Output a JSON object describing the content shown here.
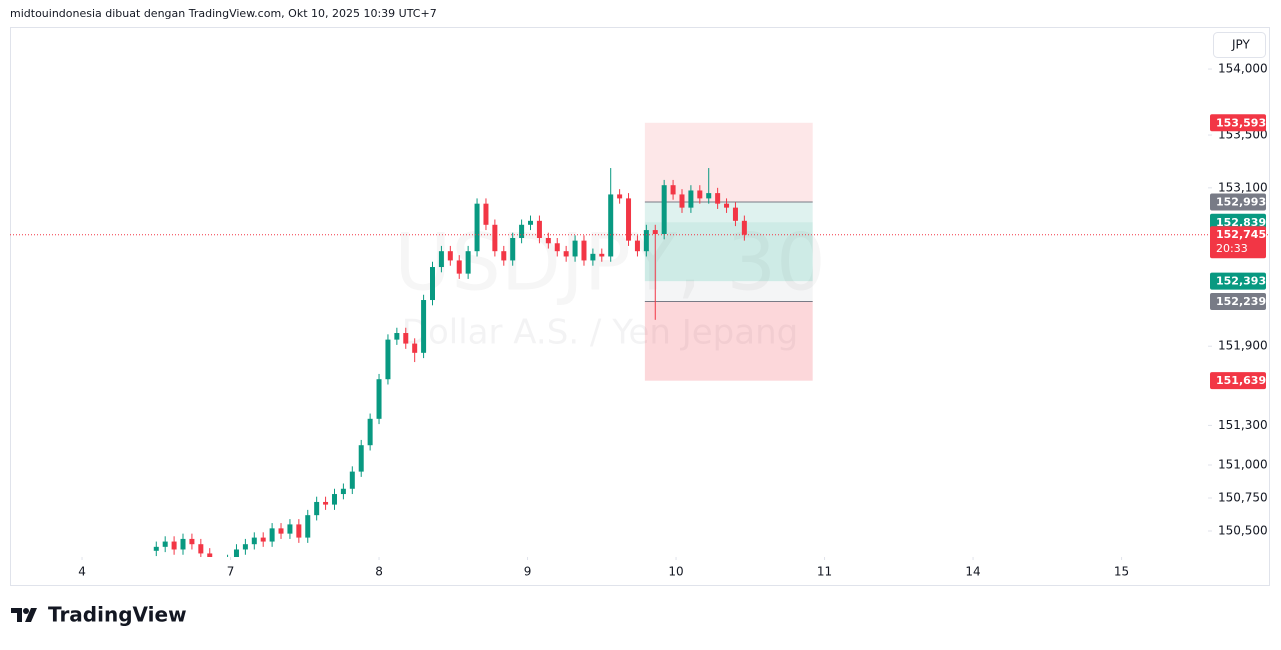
{
  "chart_data": {
    "type": "candlestick",
    "title": "midtouindonesia dibuat dengan TradingView.com, Okt 10, 2025 10:39 UTC+7",
    "symbol": "USDJPY, 30",
    "description": "Dollar A.S. / Yen Jepang",
    "currency": "JPY",
    "brand": "TradingView",
    "up_color": "#089981",
    "down_color": "#f23645",
    "xlim": [
      -0.485,
      7.582
    ],
    "xticks": [
      {
        "value": 0,
        "label": "4"
      },
      {
        "value": 1,
        "label": "7"
      },
      {
        "value": 2,
        "label": "8"
      },
      {
        "value": 3,
        "label": "9"
      },
      {
        "value": 4,
        "label": "10"
      },
      {
        "value": 5,
        "label": "11"
      },
      {
        "value": 6,
        "label": "14"
      },
      {
        "value": 7,
        "label": "15"
      }
    ],
    "ylim": [
      150.303,
      154.311
    ],
    "yticks": [
      {
        "value": 154.0,
        "label": "154,000"
      },
      {
        "value": 153.5,
        "label": "153,500"
      },
      {
        "value": 153.1,
        "label": "153,100"
      },
      {
        "value": 151.9,
        "label": "151,900"
      },
      {
        "value": 151.3,
        "label": "151,300"
      },
      {
        "value": 151.0,
        "label": "151,000"
      },
      {
        "value": 150.75,
        "label": "150,750"
      },
      {
        "value": 150.5,
        "label": "150,500"
      }
    ],
    "x": [
      0.5,
      0.56,
      0.62,
      0.68,
      0.74,
      0.8,
      0.86,
      0.92,
      0.98,
      1.04,
      1.1,
      1.16,
      1.22,
      1.28,
      1.34,
      1.4,
      1.46,
      1.52,
      1.58,
      1.64,
      1.7,
      1.76,
      1.82,
      1.88,
      1.94,
      2.0,
      2.06,
      2.12,
      2.18,
      2.24,
      2.3,
      2.36,
      2.42,
      2.48,
      2.54,
      2.6,
      2.66,
      2.72,
      2.78,
      2.84,
      2.9,
      2.96,
      3.02,
      3.08,
      3.14,
      3.2,
      3.26,
      3.32,
      3.38,
      3.44,
      3.5,
      3.56,
      3.62,
      3.68,
      3.74,
      3.8,
      3.86,
      3.92,
      3.98,
      4.04,
      4.1,
      4.16,
      4.22,
      4.28,
      4.34,
      4.4,
      4.46
    ],
    "ohlc": [
      [
        150.35,
        150.42,
        150.31,
        150.38
      ],
      [
        150.38,
        150.46,
        150.34,
        150.42
      ],
      [
        150.42,
        150.46,
        150.32,
        150.36
      ],
      [
        150.36,
        150.48,
        150.32,
        150.44
      ],
      [
        150.44,
        150.48,
        150.36,
        150.4
      ],
      [
        150.4,
        150.44,
        150.29,
        150.33
      ],
      [
        150.33,
        150.37,
        150.21,
        150.25
      ],
      [
        150.25,
        150.29,
        150.18,
        150.22
      ],
      [
        150.22,
        150.32,
        150.18,
        150.28
      ],
      [
        150.28,
        150.4,
        150.24,
        150.36
      ],
      [
        150.36,
        150.44,
        150.32,
        150.4
      ],
      [
        150.4,
        150.49,
        150.36,
        150.45
      ],
      [
        150.45,
        150.49,
        150.38,
        150.42
      ],
      [
        150.42,
        150.56,
        150.38,
        150.52
      ],
      [
        150.52,
        150.56,
        150.44,
        150.48
      ],
      [
        150.48,
        150.59,
        150.44,
        150.55
      ],
      [
        150.55,
        150.59,
        150.41,
        150.45
      ],
      [
        150.45,
        150.66,
        150.41,
        150.62
      ],
      [
        150.62,
        150.76,
        150.58,
        150.72
      ],
      [
        150.72,
        150.76,
        150.66,
        150.7
      ],
      [
        150.7,
        150.82,
        150.66,
        150.78
      ],
      [
        150.78,
        150.86,
        150.74,
        150.82
      ],
      [
        150.82,
        150.99,
        150.78,
        150.95
      ],
      [
        150.95,
        151.19,
        150.91,
        151.15
      ],
      [
        151.15,
        151.39,
        151.11,
        151.35
      ],
      [
        151.35,
        151.69,
        151.31,
        151.65
      ],
      [
        151.65,
        151.99,
        151.61,
        151.95
      ],
      [
        151.95,
        152.04,
        151.91,
        152.0
      ],
      [
        152.0,
        152.04,
        151.88,
        151.92
      ],
      [
        151.92,
        151.96,
        151.78,
        151.85
      ],
      [
        151.85,
        152.29,
        151.81,
        152.25
      ],
      [
        152.25,
        152.54,
        152.21,
        152.5
      ],
      [
        152.5,
        152.66,
        152.46,
        152.62
      ],
      [
        152.62,
        152.66,
        152.51,
        152.55
      ],
      [
        152.55,
        152.59,
        152.41,
        152.45
      ],
      [
        152.45,
        152.66,
        152.41,
        152.62
      ],
      [
        152.62,
        153.02,
        152.58,
        152.98
      ],
      [
        152.98,
        153.02,
        152.78,
        152.82
      ],
      [
        152.82,
        152.86,
        152.58,
        152.62
      ],
      [
        152.62,
        152.66,
        152.51,
        152.55
      ],
      [
        152.55,
        152.76,
        152.51,
        152.72
      ],
      [
        152.72,
        152.86,
        152.68,
        152.82
      ],
      [
        152.82,
        152.89,
        152.78,
        152.85
      ],
      [
        152.85,
        152.89,
        152.68,
        152.72
      ],
      [
        152.72,
        152.76,
        152.64,
        152.68
      ],
      [
        152.68,
        152.72,
        152.58,
        152.62
      ],
      [
        152.62,
        152.66,
        152.54,
        152.58
      ],
      [
        152.58,
        152.74,
        152.54,
        152.7
      ],
      [
        152.7,
        152.74,
        152.51,
        152.55
      ],
      [
        152.55,
        152.64,
        152.51,
        152.6
      ],
      [
        152.6,
        152.64,
        152.54,
        152.58
      ],
      [
        152.58,
        153.25,
        152.54,
        153.05
      ],
      [
        153.05,
        153.09,
        152.98,
        153.02
      ],
      [
        153.02,
        153.06,
        152.66,
        152.7
      ],
      [
        152.7,
        152.74,
        152.58,
        152.62
      ],
      [
        152.62,
        152.82,
        152.58,
        152.78
      ],
      [
        152.78,
        152.82,
        152.1,
        152.75
      ],
      [
        152.75,
        153.16,
        152.71,
        153.12
      ],
      [
        153.12,
        153.16,
        153.01,
        153.05
      ],
      [
        153.05,
        153.09,
        152.91,
        152.95
      ],
      [
        152.95,
        153.12,
        152.91,
        153.08
      ],
      [
        153.08,
        153.12,
        152.98,
        153.02
      ],
      [
        153.02,
        153.25,
        152.98,
        153.06
      ],
      [
        153.06,
        153.1,
        152.94,
        152.98
      ],
      [
        152.98,
        153.02,
        152.91,
        152.95
      ],
      [
        152.95,
        152.99,
        152.81,
        152.85
      ],
      [
        152.85,
        152.89,
        152.7,
        152.745
      ]
    ],
    "zone_x": [
      3.79,
      4.92
    ],
    "zones": [
      {
        "from": 153.593,
        "to": 152.993,
        "color": "rgba(242,54,69,0.12)"
      },
      {
        "from": 152.993,
        "to": 152.393,
        "color": "rgba(8,153,129,0.13)"
      },
      {
        "from": 152.839,
        "to": 152.393,
        "color": "rgba(8,153,129,0.08)"
      },
      {
        "from": 152.393,
        "to": 152.239,
        "color": "rgba(120,123,134,0.08)"
      },
      {
        "from": 152.239,
        "to": 151.639,
        "color": "rgba(242,54,69,0.2)"
      }
    ],
    "current_price": 152.745,
    "price_labels": [
      {
        "value": 153.593,
        "label": "153,593",
        "color": "#f23645"
      },
      {
        "value": 152.993,
        "label": "152,993",
        "color": "#787b86"
      },
      {
        "value": 152.839,
        "label": "152,839",
        "color": "#089981"
      },
      {
        "value": 152.745,
        "label": "152,745",
        "color": "#f23645",
        "countdown": "20:33"
      },
      {
        "value": 152.393,
        "label": "152,393",
        "color": "#089981"
      },
      {
        "value": 152.239,
        "label": "152,239",
        "color": "#787b86"
      },
      {
        "value": 151.639,
        "label": "151,639",
        "color": "#f23645"
      }
    ]
  }
}
